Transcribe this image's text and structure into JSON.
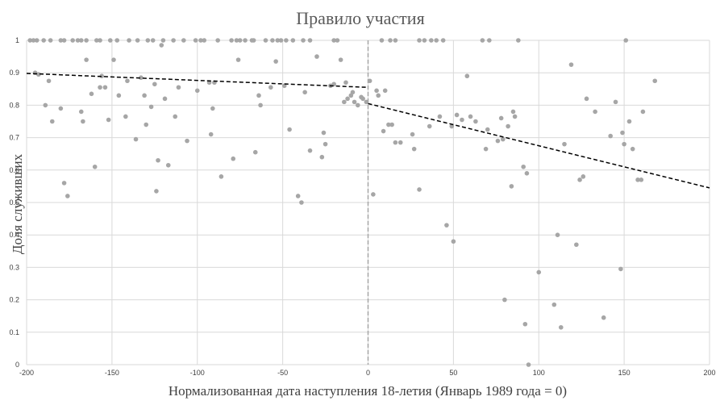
{
  "chart_data": {
    "type": "scatter",
    "title": "Правило участия",
    "xlabel": "Нормализованная дата наступления 18-летия (Январь 1989 года = 0)",
    "ylabel": "Доля служивших",
    "xlim": [
      -200,
      200
    ],
    "ylim": [
      0,
      1
    ],
    "x_ticks": [
      "-200",
      "-150",
      "-100",
      "-50",
      "0",
      "50",
      "100",
      "150",
      "200"
    ],
    "y_ticks": [
      "0",
      "0.1",
      "0.2",
      "0.3",
      "0.4",
      "0.5",
      "0.6",
      "0.7",
      "0.8",
      "0.9",
      "1"
    ],
    "grid": true,
    "cutoff_x": 0,
    "trend_lines": [
      {
        "x": [
          -200,
          0
        ],
        "y": [
          0.898,
          0.855
        ]
      },
      {
        "x": [
          0,
          200
        ],
        "y": [
          0.805,
          0.545
        ]
      }
    ],
    "points": [
      [
        -198,
        1
      ],
      [
        -196,
        1
      ],
      [
        -194,
        1
      ],
      [
        -190,
        1
      ],
      [
        -186,
        1
      ],
      [
        -180,
        1
      ],
      [
        -178,
        1
      ],
      [
        -173,
        1
      ],
      [
        -170,
        1
      ],
      [
        -168,
        1
      ],
      [
        -165,
        1
      ],
      [
        -159,
        1
      ],
      [
        -157,
        1
      ],
      [
        -151,
        1
      ],
      [
        -147,
        1
      ],
      [
        -140,
        1
      ],
      [
        -135,
        1
      ],
      [
        -129,
        1
      ],
      [
        -126,
        1
      ],
      [
        -120,
        1
      ],
      [
        -114,
        1
      ],
      [
        -108,
        1
      ],
      [
        -101,
        1
      ],
      [
        -98,
        1
      ],
      [
        -96,
        1
      ],
      [
        -88,
        1
      ],
      [
        -80,
        1
      ],
      [
        -77,
        1
      ],
      [
        -75,
        1
      ],
      [
        -72,
        1
      ],
      [
        -68,
        1
      ],
      [
        -67,
        1
      ],
      [
        -60,
        1
      ],
      [
        -56,
        1
      ],
      [
        -53,
        1
      ],
      [
        -51,
        1
      ],
      [
        -48,
        1
      ],
      [
        -44,
        1
      ],
      [
        -38,
        1
      ],
      [
        -34,
        1
      ],
      [
        -20,
        1
      ],
      [
        -18,
        1
      ],
      [
        8,
        1
      ],
      [
        13,
        1
      ],
      [
        16,
        1
      ],
      [
        30,
        1
      ],
      [
        33,
        1
      ],
      [
        37,
        1
      ],
      [
        40,
        1
      ],
      [
        44,
        1
      ],
      [
        67,
        1
      ],
      [
        71,
        1
      ],
      [
        88,
        1
      ],
      [
        151,
        1
      ],
      [
        -195,
        0.9
      ],
      [
        -193,
        0.895
      ],
      [
        -189,
        0.8
      ],
      [
        -187,
        0.875
      ],
      [
        -185,
        0.75
      ],
      [
        -180,
        0.79
      ],
      [
        -178,
        0.56
      ],
      [
        -176,
        0.52
      ],
      [
        -168,
        0.78
      ],
      [
        -167,
        0.75
      ],
      [
        -165,
        0.94
      ],
      [
        -162,
        0.835
      ],
      [
        -160,
        0.61
      ],
      [
        -157,
        0.855
      ],
      [
        -156,
        0.89
      ],
      [
        -154,
        0.855
      ],
      [
        -152,
        0.755
      ],
      [
        -149,
        0.94
      ],
      [
        -146,
        0.83
      ],
      [
        -142,
        0.765
      ],
      [
        -141,
        0.875
      ],
      [
        -136,
        0.695
      ],
      [
        -133,
        0.885
      ],
      [
        -131,
        0.83
      ],
      [
        -130,
        0.74
      ],
      [
        -127,
        0.795
      ],
      [
        -125,
        0.865
      ],
      [
        -124,
        0.535
      ],
      [
        -123,
        0.63
      ],
      [
        -121,
        0.985
      ],
      [
        -119,
        0.82
      ],
      [
        -117,
        0.615
      ],
      [
        -113,
        0.765
      ],
      [
        -111,
        0.855
      ],
      [
        -106,
        0.69
      ],
      [
        -100,
        0.845
      ],
      [
        -93,
        0.87
      ],
      [
        -92,
        0.71
      ],
      [
        -91,
        0.79
      ],
      [
        -90,
        0.87
      ],
      [
        -86,
        0.58
      ],
      [
        -79,
        0.635
      ],
      [
        -76,
        0.94
      ],
      [
        -66,
        0.655
      ],
      [
        -64,
        0.83
      ],
      [
        -63,
        0.8
      ],
      [
        -57,
        0.855
      ],
      [
        -54,
        0.935
      ],
      [
        -49,
        0.86
      ],
      [
        -46,
        0.725
      ],
      [
        -41,
        0.52
      ],
      [
        -39,
        0.5
      ],
      [
        -37,
        0.84
      ],
      [
        -34,
        0.66
      ],
      [
        -30,
        0.95
      ],
      [
        -27,
        0.64
      ],
      [
        -26,
        0.715
      ],
      [
        -25,
        0.68
      ],
      [
        -22,
        0.86
      ],
      [
        -20,
        0.865
      ],
      [
        -16,
        0.94
      ],
      [
        -14,
        0.81
      ],
      [
        -13,
        0.87
      ],
      [
        -12,
        0.82
      ],
      [
        -10,
        0.83
      ],
      [
        -9,
        0.84
      ],
      [
        -8,
        0.81
      ],
      [
        -6,
        0.8
      ],
      [
        -4,
        0.825
      ],
      [
        -3,
        0.82
      ],
      [
        -1,
        0.81
      ],
      [
        1,
        0.875
      ],
      [
        3,
        0.525
      ],
      [
        5,
        0.845
      ],
      [
        6,
        0.83
      ],
      [
        9,
        0.72
      ],
      [
        10,
        0.845
      ],
      [
        12,
        0.74
      ],
      [
        14,
        0.74
      ],
      [
        16,
        0.685
      ],
      [
        19,
        0.685
      ],
      [
        26,
        0.71
      ],
      [
        27,
        0.665
      ],
      [
        30,
        0.54
      ],
      [
        36,
        0.735
      ],
      [
        42,
        0.765
      ],
      [
        46,
        0.43
      ],
      [
        49,
        0.735
      ],
      [
        50,
        0.38
      ],
      [
        52,
        0.77
      ],
      [
        55,
        0.755
      ],
      [
        58,
        0.89
      ],
      [
        60,
        0.765
      ],
      [
        63,
        0.75
      ],
      [
        69,
        0.665
      ],
      [
        70,
        0.725
      ],
      [
        76,
        0.69
      ],
      [
        78,
        0.76
      ],
      [
        79,
        0.695
      ],
      [
        80,
        0.2
      ],
      [
        82,
        0.735
      ],
      [
        84,
        0.55
      ],
      [
        85,
        0.78
      ],
      [
        86,
        0.765
      ],
      [
        91,
        0.61
      ],
      [
        92,
        0.125
      ],
      [
        93,
        0.59
      ],
      [
        94,
        0.0
      ],
      [
        100,
        0.285
      ],
      [
        109,
        0.185
      ],
      [
        111,
        0.4
      ],
      [
        113,
        0.115
      ],
      [
        115,
        0.68
      ],
      [
        119,
        0.925
      ],
      [
        122,
        0.37
      ],
      [
        124,
        0.57
      ],
      [
        126,
        0.58
      ],
      [
        128,
        0.82
      ],
      [
        133,
        0.78
      ],
      [
        138,
        0.145
      ],
      [
        142,
        0.705
      ],
      [
        145,
        0.81
      ],
      [
        148,
        0.295
      ],
      [
        149,
        0.715
      ],
      [
        150,
        0.68
      ],
      [
        153,
        0.75
      ],
      [
        155,
        0.665
      ],
      [
        158,
        0.57
      ],
      [
        160,
        0.57
      ],
      [
        161,
        0.78
      ],
      [
        168,
        0.875
      ]
    ]
  }
}
